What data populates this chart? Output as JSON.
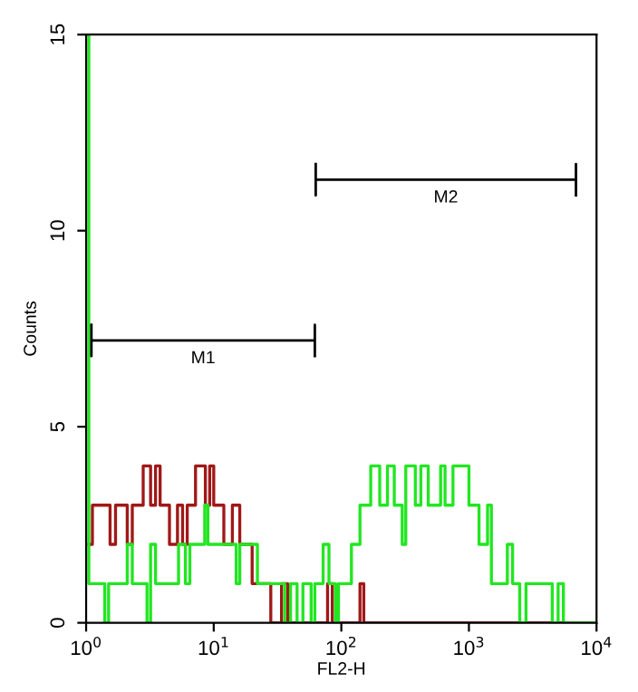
{
  "chart_data": {
    "type": "step",
    "xlabel": "FL2-H",
    "ylabel": "Counts",
    "log": "x",
    "xlim": [
      1,
      10000
    ],
    "xticks": [
      {
        "value": 1,
        "label": "10$^{0}$"
      },
      {
        "value": 10,
        "label": "10$^{1}$"
      },
      {
        "value": 100,
        "label": "10$^{2}$"
      },
      {
        "value": 1000,
        "label": "10$^{3}$"
      },
      {
        "value": 10000,
        "label": "10$^{4}$"
      }
    ],
    "ylim": [
      0,
      15
    ],
    "yticks": [
      0,
      5,
      10,
      15
    ],
    "grid": false,
    "legend": false,
    "series": [
      {
        "color": "#a01818",
        "x": [
          1.05,
          1.12,
          1.54,
          1.7,
          2.1,
          2.3,
          2.8,
          3.2,
          3.5,
          3.8,
          4.5,
          5.2,
          5.7,
          6.2,
          7.2,
          8.6,
          9.3,
          10,
          12,
          14,
          16,
          20,
          25,
          28,
          34,
          38,
          78,
          85,
          140,
          150,
          10000
        ],
        "values": [
          2,
          3,
          2,
          3,
          2,
          3,
          4,
          3,
          4,
          3,
          2,
          3,
          2,
          3,
          4,
          3,
          4,
          3,
          2,
          3,
          2,
          1,
          1,
          0,
          1,
          0,
          1,
          0,
          1,
          0,
          0
        ]
      },
      {
        "color": "#22e622",
        "x": [
          1.0,
          1.05,
          1.4,
          1.5,
          2.1,
          2.3,
          3.0,
          3.2,
          3.5,
          5.3,
          6.0,
          6.5,
          8.5,
          9.0,
          15,
          16,
          22,
          36,
          40,
          45,
          50,
          58,
          62,
          72,
          80,
          90,
          95,
          120,
          140,
          170,
          200,
          230,
          260,
          300,
          320,
          380,
          420,
          480,
          600,
          650,
          750,
          1000,
          1200,
          1400,
          1500,
          2000,
          2200,
          2500,
          2800,
          4000,
          4500,
          5000,
          5500,
          10000
        ],
        "values": [
          15,
          1,
          0,
          1,
          2,
          1,
          0,
          2,
          1,
          2,
          1,
          2,
          3,
          2,
          1,
          2,
          1,
          0,
          1,
          0,
          1,
          0,
          1,
          2,
          1,
          0,
          1,
          2,
          3,
          4,
          3,
          4,
          3,
          2,
          4,
          3,
          4,
          3,
          4,
          3,
          4,
          3,
          2,
          3,
          1,
          2,
          1,
          0,
          1,
          1,
          0,
          1,
          0,
          0
        ]
      },
      {
        "type": "line",
        "name": "M1",
        "color": "#000000",
        "x": [
          1.1,
          1.1,
          1.1,
          62,
          62,
          62
        ],
        "values": [
          7.6,
          6.8,
          7.2,
          7.2,
          7.6,
          6.8
        ]
      },
      {
        "type": "line",
        "name": "M2",
        "color": "#000000",
        "x": [
          63,
          63,
          63,
          6900,
          6900,
          6900
        ],
        "values": [
          11.7,
          10.9,
          11.3,
          11.3,
          11.7,
          10.9
        ]
      }
    ]
  }
}
